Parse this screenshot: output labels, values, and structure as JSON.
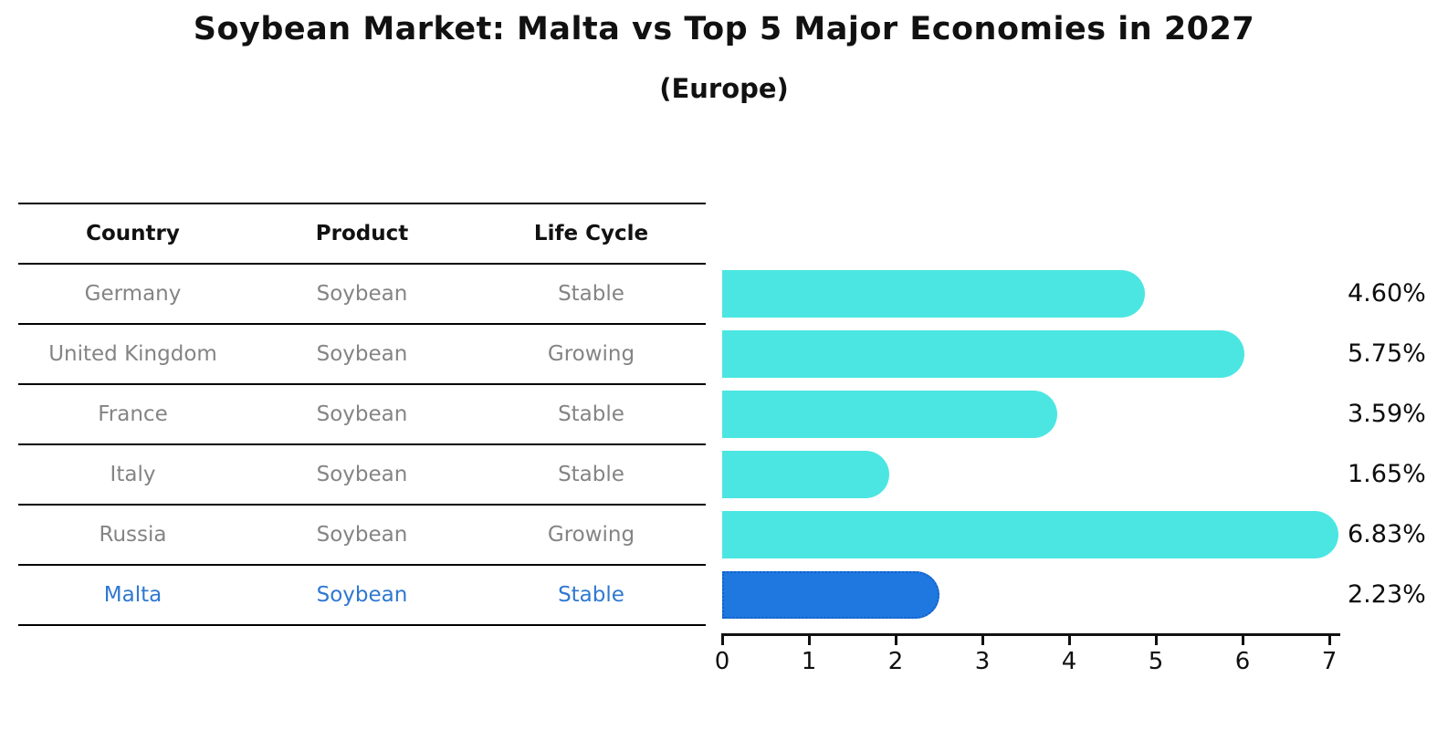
{
  "title": "Soybean Market: Malta vs Top 5 Major Economies in 2027",
  "subtitle": "(Europe)",
  "table": {
    "headers": [
      "Country",
      "Product",
      "Life Cycle"
    ],
    "rows": [
      {
        "country": "Germany",
        "product": "Soybean",
        "life_cycle": "Stable",
        "highlight": false
      },
      {
        "country": "United Kingdom",
        "product": "Soybean",
        "life_cycle": "Growing",
        "highlight": false
      },
      {
        "country": "France",
        "product": "Soybean",
        "life_cycle": "Stable",
        "highlight": false
      },
      {
        "country": "Italy",
        "product": "Soybean",
        "life_cycle": "Stable",
        "highlight": false
      },
      {
        "country": "Russia",
        "product": "Soybean",
        "life_cycle": "Growing",
        "highlight": false
      },
      {
        "country": "Malta",
        "product": "Soybean",
        "life_cycle": "Stable",
        "highlight": true
      }
    ]
  },
  "chart_data": {
    "type": "bar",
    "orientation": "horizontal",
    "title": "Soybean Market: Malta vs Top 5 Major Economies in 2027",
    "subtitle": "(Europe)",
    "categories": [
      "Germany",
      "United Kingdom",
      "France",
      "Italy",
      "Russia",
      "Malta"
    ],
    "values": [
      4.6,
      5.75,
      3.59,
      1.65,
      6.83,
      2.23
    ],
    "labels": [
      "4.60%",
      "5.75%",
      "3.59%",
      "1.65%",
      "6.83%",
      "2.23%"
    ],
    "x_ticks": [
      "0",
      "1",
      "2",
      "3",
      "4",
      "5",
      "6",
      "7"
    ],
    "xlim": [
      0,
      7
    ],
    "grid": false,
    "legend": false,
    "bar_color": "#4be6e2",
    "highlight_color": "#1f78e0",
    "highlight_border_color": "#1460c8",
    "highlight_index": 5,
    "unit": "percent"
  },
  "colors": {
    "background": "#ffffff",
    "table_line": "#000000",
    "row_text": "#848484",
    "highlight_text": "#2e78d2",
    "axis": "#111111"
  }
}
